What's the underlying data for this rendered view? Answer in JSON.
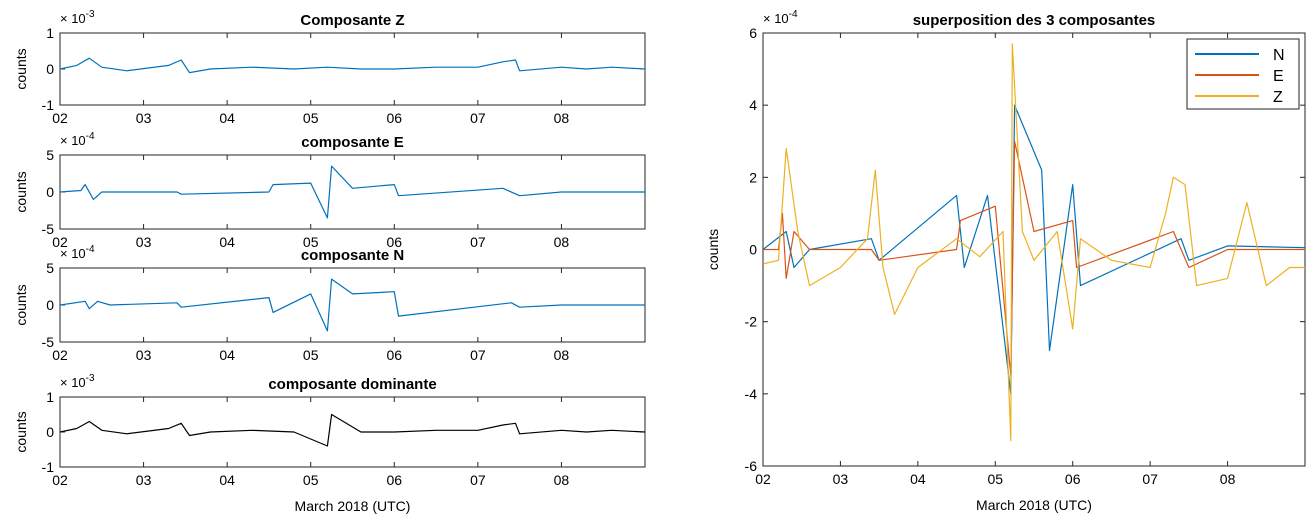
{
  "chart_data": [
    {
      "type": "line",
      "title": "Composante Z",
      "ylabel": "counts",
      "xlabel": "",
      "y_exponent": "-3",
      "ylim": [
        -1,
        1
      ],
      "yticks": [
        "1",
        "0",
        "-1"
      ],
      "xlim": [
        2,
        9
      ],
      "xticks": [
        "02",
        "03",
        "04",
        "05",
        "06",
        "07",
        "08"
      ],
      "series": [
        {
          "color": "#0072bd",
          "x": [
            2.0,
            2.2,
            2.35,
            2.5,
            2.8,
            3.3,
            3.45,
            3.55,
            3.8,
            4.3,
            4.8,
            5.2,
            5.6,
            6.0,
            6.5,
            7.0,
            7.3,
            7.45,
            7.5,
            8.0,
            8.3,
            8.6,
            9.0
          ],
          "y": [
            0,
            0.1,
            0.3,
            0.05,
            -0.05,
            0.1,
            0.25,
            -0.1,
            0.0,
            0.05,
            0.0,
            0.05,
            0.0,
            0.0,
            0.05,
            0.05,
            0.2,
            0.25,
            -0.05,
            0.05,
            0.0,
            0.05,
            0.0
          ]
        }
      ]
    },
    {
      "type": "line",
      "title": "composante E",
      "ylabel": "counts",
      "xlabel": "",
      "y_exponent": "-4",
      "ylim": [
        -5,
        5
      ],
      "yticks": [
        "5",
        "0",
        "-5"
      ],
      "xlim": [
        2,
        9
      ],
      "xticks": [
        "02",
        "03",
        "04",
        "05",
        "06",
        "07",
        "08"
      ],
      "series": [
        {
          "color": "#0072bd",
          "x": [
            2.0,
            2.25,
            2.3,
            2.4,
            2.5,
            3.4,
            3.45,
            4.5,
            4.55,
            5.0,
            5.2,
            5.25,
            5.5,
            6.0,
            6.05,
            7.3,
            7.5,
            8.0,
            9.0
          ],
          "y": [
            0,
            0.2,
            1.0,
            -1.0,
            0.0,
            0.0,
            -0.3,
            0.0,
            1.0,
            1.2,
            -3.5,
            3.5,
            0.5,
            1.0,
            -0.5,
            0.5,
            -0.5,
            0.0,
            0.0
          ]
        }
      ]
    },
    {
      "type": "line",
      "title": "composante N",
      "ylabel": "counts",
      "xlabel": "",
      "y_exponent": "-4",
      "ylim": [
        -5,
        5
      ],
      "yticks": [
        "5",
        "0",
        "-5"
      ],
      "xlim": [
        2,
        9
      ],
      "xticks": [
        "02",
        "03",
        "04",
        "05",
        "06",
        "07",
        "08"
      ],
      "series": [
        {
          "color": "#0072bd",
          "x": [
            2.0,
            2.3,
            2.35,
            2.45,
            2.6,
            3.4,
            3.45,
            4.5,
            4.55,
            5.0,
            5.2,
            5.25,
            5.5,
            6.0,
            6.05,
            7.4,
            7.5,
            8.0,
            9.0
          ],
          "y": [
            0,
            0.5,
            -0.5,
            0.5,
            0.0,
            0.3,
            -0.3,
            1.0,
            -1.0,
            1.5,
            -3.5,
            3.5,
            1.5,
            1.8,
            -1.5,
            0.3,
            -0.3,
            0.0,
            0.0
          ]
        }
      ]
    },
    {
      "type": "line",
      "title": "composante dominante",
      "ylabel": "counts",
      "xlabel": "March 2018 (UTC)",
      "y_exponent": "-3",
      "ylim": [
        -1,
        1
      ],
      "yticks": [
        "1",
        "0",
        "-1"
      ],
      "xlim": [
        2,
        9
      ],
      "xticks": [
        "02",
        "03",
        "04",
        "05",
        "06",
        "07",
        "08"
      ],
      "series": [
        {
          "color": "#000000",
          "x": [
            2.0,
            2.2,
            2.35,
            2.5,
            2.8,
            3.3,
            3.45,
            3.55,
            3.8,
            4.3,
            4.8,
            5.2,
            5.25,
            5.6,
            6.0,
            6.5,
            7.0,
            7.3,
            7.45,
            7.5,
            8.0,
            8.3,
            8.6,
            9.0
          ],
          "y": [
            0,
            0.1,
            0.3,
            0.05,
            -0.05,
            0.1,
            0.25,
            -0.1,
            0.0,
            0.05,
            0.0,
            -0.4,
            0.5,
            0.0,
            0.0,
            0.05,
            0.05,
            0.2,
            0.25,
            -0.05,
            0.05,
            0.0,
            0.05,
            0.0
          ]
        }
      ]
    },
    {
      "type": "line",
      "title": "superposition des 3 composantes",
      "ylabel": "counts",
      "xlabel": "March 2018 (UTC)",
      "y_exponent": "-4",
      "ylim": [
        -6,
        6
      ],
      "yticks": [
        "6",
        "4",
        "2",
        "0",
        "-2",
        "-4",
        "-6"
      ],
      "xlim": [
        2,
        9
      ],
      "xticks": [
        "02",
        "03",
        "04",
        "05",
        "06",
        "07",
        "08"
      ],
      "legend_position": "top-right",
      "series": [
        {
          "name": "N",
          "color": "#0072bd",
          "x": [
            2.0,
            2.3,
            2.4,
            2.6,
            3.4,
            3.5,
            4.5,
            4.6,
            4.9,
            5.2,
            5.25,
            5.6,
            5.7,
            6.0,
            6.1,
            7.4,
            7.5,
            8.0,
            9.0
          ],
          "y": [
            0,
            0.5,
            -0.5,
            0.0,
            0.3,
            -0.3,
            1.5,
            -0.5,
            1.5,
            -4.0,
            4.0,
            2.2,
            -2.8,
            1.8,
            -1.0,
            0.3,
            -0.3,
            0.1,
            0.05
          ]
        },
        {
          "name": "E",
          "color": "#d95319",
          "x": [
            2.0,
            2.2,
            2.25,
            2.3,
            2.4,
            2.6,
            3.4,
            3.5,
            4.5,
            4.55,
            5.0,
            5.2,
            5.25,
            5.5,
            6.0,
            6.05,
            7.3,
            7.5,
            8.0,
            9.0
          ],
          "y": [
            0,
            0.0,
            1.0,
            -0.8,
            0.5,
            0.0,
            0.0,
            -0.3,
            0.0,
            0.8,
            1.2,
            -3.5,
            3.0,
            0.5,
            0.8,
            -0.5,
            0.5,
            -0.5,
            0.0,
            0.0
          ]
        },
        {
          "name": "Z",
          "color": "#edb120",
          "x": [
            2.0,
            2.2,
            2.3,
            2.45,
            2.6,
            3.0,
            3.35,
            3.45,
            3.55,
            3.7,
            4.0,
            4.5,
            4.8,
            5.1,
            5.2,
            5.22,
            5.35,
            5.5,
            5.8,
            6.0,
            6.1,
            6.5,
            7.0,
            7.2,
            7.3,
            7.45,
            7.6,
            8.0,
            8.25,
            8.5,
            8.8,
            9.0
          ],
          "y": [
            -0.4,
            -0.3,
            2.8,
            0.5,
            -1.0,
            -0.5,
            0.3,
            2.2,
            -0.5,
            -1.8,
            -0.5,
            0.3,
            -0.2,
            0.5,
            -5.3,
            5.7,
            0.5,
            -0.3,
            0.5,
            -2.2,
            0.3,
            -0.3,
            -0.5,
            1.0,
            2.0,
            1.8,
            -1.0,
            -0.8,
            1.3,
            -1.0,
            -0.5,
            -0.5
          ]
        }
      ]
    }
  ]
}
